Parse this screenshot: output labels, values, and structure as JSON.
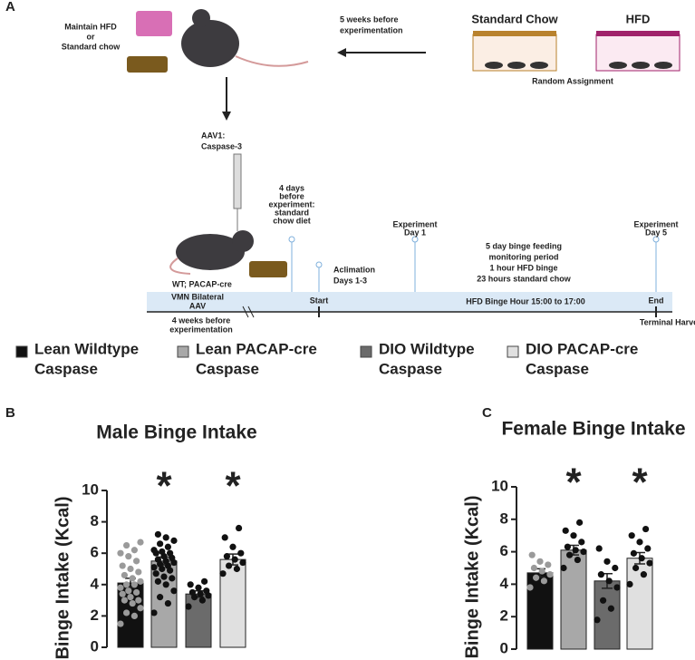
{
  "diagram": {
    "panel": "A",
    "maintain": [
      "Maintain HFD",
      "or",
      "Standard chow"
    ],
    "weeks5": [
      "5 weeks before",
      "experimentation"
    ],
    "standard_chow": "Standard Chow",
    "hfd": "HFD",
    "random": "Random Assignment",
    "aav": [
      "AAV1:",
      "Caspase-3"
    ],
    "days4": [
      "4 days",
      "before",
      "experiment:",
      "standard",
      "chow diet"
    ],
    "exp_day1": [
      "Experiment",
      "Day 1"
    ],
    "exp_day5": [
      "Experiment",
      "Day 5"
    ],
    "monitor": [
      "5 day binge feeding",
      "monitoring period",
      "1 hour HFD binge",
      "23 hours standard chow"
    ],
    "acclimation": [
      "Aclimation",
      "Days 1-3"
    ],
    "mouse_label": "WT; PACAP-cre",
    "vmn": [
      "VMN Bilateral",
      "AAV"
    ],
    "start": "Start",
    "binge_hour": "HFD Binge Hour 15:00 to 17:00",
    "end": "End",
    "weeks4": [
      "4 weeks before",
      "experimentation"
    ],
    "terminal": "Terminal Harvest"
  },
  "legend": [
    [
      "Lean Wildtype",
      "Caspase"
    ],
    [
      "Lean PACAP-cre",
      "Caspase"
    ],
    [
      "DIO Wildtype",
      "Caspase"
    ],
    [
      "DIO PACAP-cre",
      "Caspase"
    ]
  ],
  "chart_data": [
    {
      "type": "bar",
      "panel": "B",
      "title": "Male Binge Intake",
      "y_label": "Binge Intake (Kcal)",
      "ylim": [
        0,
        10
      ],
      "yticks": [
        0,
        2,
        4,
        6,
        8,
        10
      ],
      "series": [
        {
          "name": "Lean Wildtype Caspase",
          "color": "#111111",
          "point_color": "#9a9a9a",
          "values": [
            4.1
          ],
          "errors": [
            0.3
          ],
          "points": [
            1.5,
            2,
            2.2,
            2.5,
            2.8,
            3,
            3,
            3.2,
            3.4,
            3.5,
            3.6,
            3.8,
            4,
            4,
            4.2,
            4.4,
            4.6,
            4.8,
            5,
            5.2,
            5.5,
            5.8,
            6,
            6.2,
            6.5,
            6.7
          ]
        },
        {
          "name": "Lean PACAP-cre Caspase",
          "color": "#a8a8a8",
          "point_color": "#111111",
          "values": [
            5.5
          ],
          "errors": [
            0.25
          ],
          "annotation": "*",
          "points": [
            2.2,
            2.8,
            3.2,
            3.6,
            4,
            4.2,
            4.4,
            4.5,
            4.7,
            4.9,
            5,
            5.1,
            5.2,
            5.3,
            5.4,
            5.5,
            5.6,
            5.7,
            5.8,
            6,
            6,
            6.1,
            6.2,
            6.4,
            6.6,
            6.8,
            7,
            7.2
          ]
        },
        {
          "name": "DIO Wildtype Caspase",
          "color": "#6b6b6b",
          "point_color": "#111111",
          "values": [
            3.4
          ],
          "errors": [
            0.2
          ],
          "points": [
            2.6,
            3,
            3.2,
            3.3,
            3.4,
            3.5,
            3.6,
            3.8,
            4,
            4.2
          ]
        },
        {
          "name": "DIO PACAP-cre Caspase",
          "color": "#e0e0e0",
          "point_color": "#111111",
          "values": [
            5.6
          ],
          "errors": [
            0.35
          ],
          "annotation": "*",
          "points": [
            4.7,
            5,
            5.2,
            5.4,
            5.6,
            5.8,
            6,
            6.4,
            7,
            7.6
          ]
        }
      ]
    },
    {
      "type": "bar",
      "panel": "C",
      "title": "Female Binge Intake",
      "y_label": "Binge Intake (Kcal)",
      "ylim": [
        0,
        10
      ],
      "yticks": [
        0,
        2,
        4,
        6,
        8,
        10
      ],
      "series": [
        {
          "name": "Lean Wildtype Caspase",
          "color": "#111111",
          "point_color": "#9a9a9a",
          "values": [
            4.7
          ],
          "errors": [
            0.25
          ],
          "points": [
            3.8,
            4.2,
            4.4,
            4.6,
            4.8,
            5,
            5.2,
            5.4,
            5.8
          ]
        },
        {
          "name": "Lean PACAP-cre Caspase",
          "color": "#a8a8a8",
          "point_color": "#111111",
          "values": [
            6.1
          ],
          "errors": [
            0.3
          ],
          "annotation": "*",
          "points": [
            5,
            5.5,
            5.8,
            6,
            6.1,
            6.3,
            6.6,
            7,
            7.3,
            7.8
          ]
        },
        {
          "name": "DIO Wildtype Caspase",
          "color": "#6b6b6b",
          "point_color": "#111111",
          "values": [
            4.2
          ],
          "errors": [
            0.45
          ],
          "points": [
            1.8,
            2.5,
            3,
            3.8,
            4.2,
            4.6,
            5,
            5.4,
            6.2
          ]
        },
        {
          "name": "DIO PACAP-cre Caspase",
          "color": "#e0e0e0",
          "point_color": "#111111",
          "values": [
            5.6
          ],
          "errors": [
            0.35
          ],
          "annotation": "*",
          "points": [
            4,
            4.6,
            5,
            5.3,
            5.6,
            5.9,
            6.2,
            6.6,
            7,
            7.4
          ]
        }
      ]
    }
  ]
}
